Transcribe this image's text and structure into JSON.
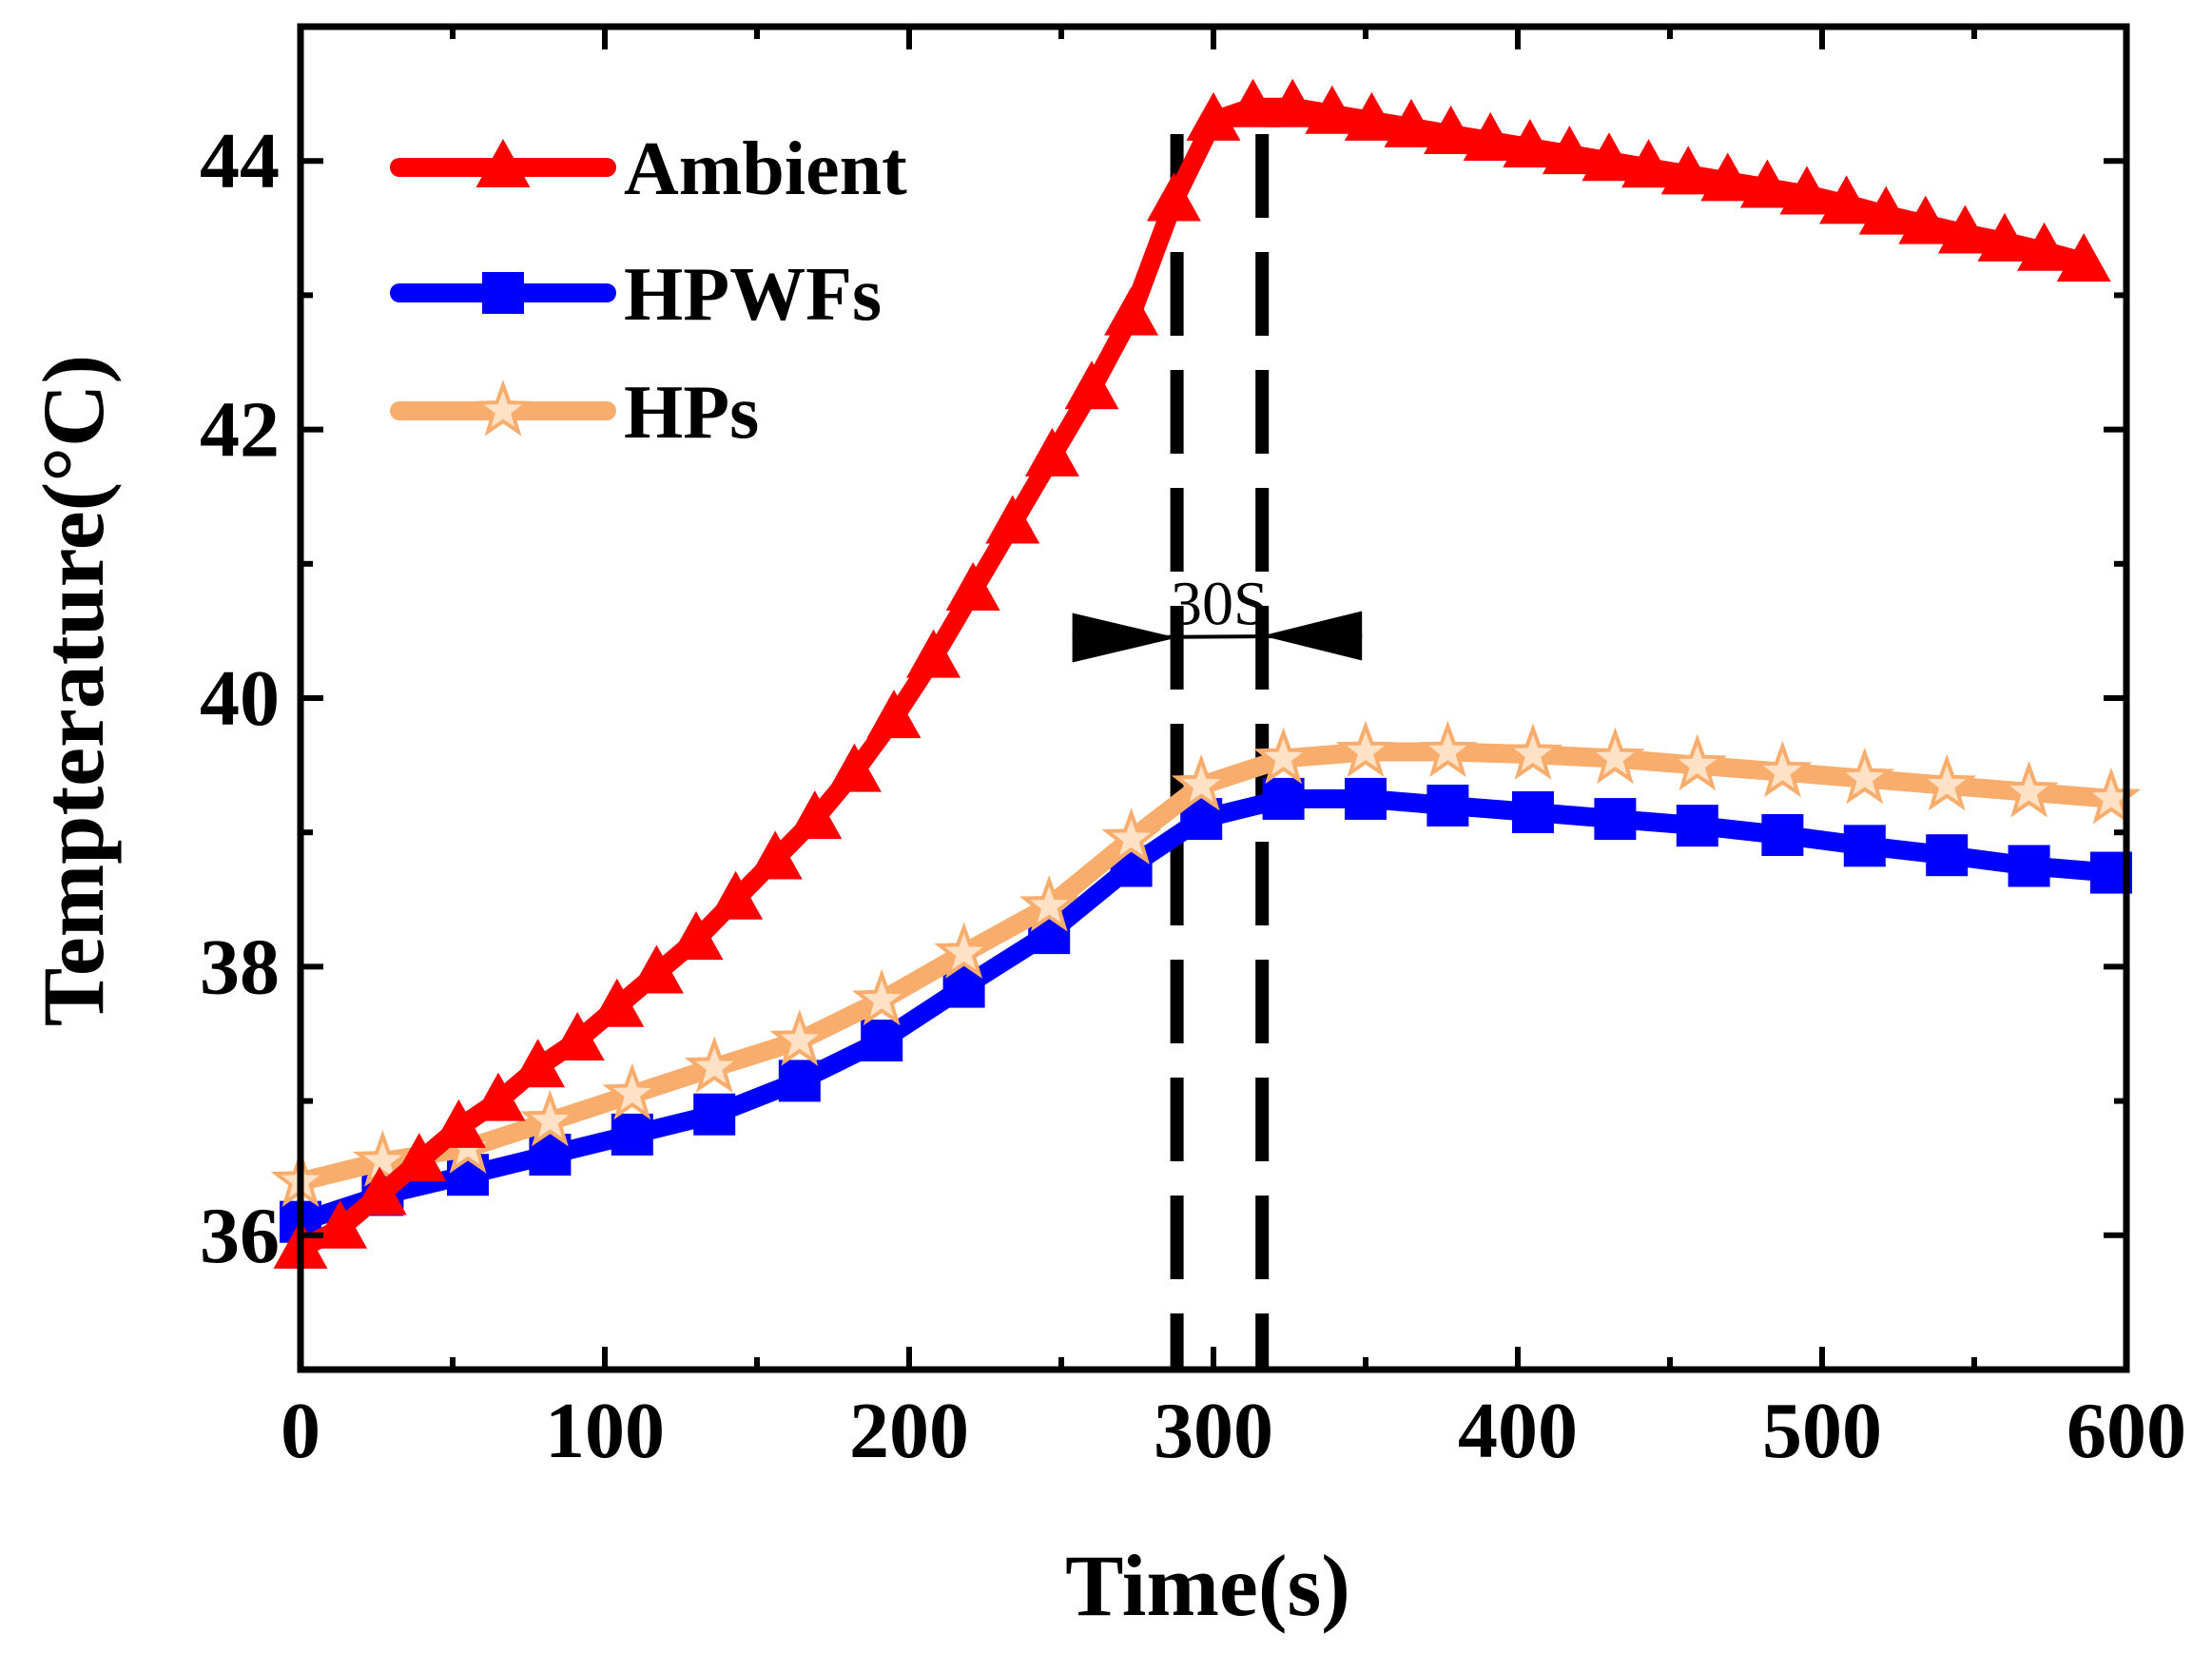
{
  "chart_data": {
    "type": "line",
    "title": "",
    "xlabel": "Time(s)",
    "ylabel": "Tempterature(°C)",
    "xlim": [
      0,
      600
    ],
    "ylim": [
      35,
      45
    ],
    "xticks": [
      0,
      100,
      200,
      300,
      400,
      500,
      600
    ],
    "xtick_labels": [
      "0",
      "100",
      "200",
      "300",
      "400",
      "500",
      "600"
    ],
    "yticks": [
      36,
      38,
      40,
      42,
      44
    ],
    "ytick_labels": [
      "36",
      "38",
      "40",
      "42",
      "44"
    ],
    "grid": false,
    "legend_position": "top-left",
    "series": [
      {
        "name": "Ambient",
        "color": "#ff0000",
        "marker": "triangle",
        "x": [
          0,
          13,
          26,
          39,
          52,
          65,
          78,
          91,
          104,
          117,
          130,
          143,
          156,
          169,
          182,
          195,
          208,
          221,
          234,
          247,
          260,
          273,
          287,
          300,
          313,
          326,
          339,
          352,
          365,
          378,
          391,
          404,
          417,
          430,
          443,
          456,
          469,
          482,
          495,
          508,
          521,
          534,
          547,
          560,
          573,
          586
        ],
        "y": [
          35.9,
          36.05,
          36.3,
          36.55,
          36.8,
          37.0,
          37.25,
          37.45,
          37.7,
          37.95,
          38.2,
          38.5,
          38.8,
          39.1,
          39.45,
          39.85,
          40.3,
          40.8,
          41.3,
          41.8,
          42.3,
          42.85,
          43.7,
          44.3,
          44.4,
          44.4,
          44.35,
          44.3,
          44.25,
          44.2,
          44.15,
          44.1,
          44.05,
          44.0,
          43.95,
          43.9,
          43.85,
          43.8,
          43.75,
          43.68,
          43.6,
          43.53,
          43.46,
          43.4,
          43.33,
          43.25
        ]
      },
      {
        "name": "HPWFs",
        "color": "#0000ff",
        "marker": "square",
        "x": [
          0,
          27,
          55,
          82,
          109,
          136,
          164,
          191,
          218,
          246,
          273,
          296,
          323,
          350,
          377,
          405,
          432,
          459,
          487,
          514,
          541,
          568,
          595
        ],
        "y": [
          36.1,
          36.3,
          36.45,
          36.6,
          36.75,
          36.9,
          37.15,
          37.45,
          37.85,
          38.25,
          38.75,
          39.1,
          39.25,
          39.25,
          39.2,
          39.15,
          39.1,
          39.05,
          38.98,
          38.9,
          38.83,
          38.75,
          38.7
        ]
      },
      {
        "name": "HPs",
        "color": "#f9ad6d",
        "marker": "star",
        "x": [
          0,
          27,
          55,
          82,
          109,
          136,
          164,
          191,
          218,
          246,
          273,
          296,
          323,
          350,
          377,
          405,
          432,
          459,
          487,
          514,
          541,
          568,
          595
        ],
        "y": [
          36.4,
          36.55,
          36.65,
          36.85,
          37.05,
          37.25,
          37.45,
          37.75,
          38.1,
          38.45,
          38.95,
          39.35,
          39.55,
          39.6,
          39.6,
          39.58,
          39.55,
          39.5,
          39.45,
          39.4,
          39.35,
          39.3,
          39.25
        ]
      }
    ],
    "annotations": [
      {
        "type": "dashed-vline",
        "x": 288,
        "y_top": 44.2,
        "y_bottom": 35.0
      },
      {
        "type": "dashed-vline",
        "x": 316,
        "y_top": 44.2,
        "y_bottom": 35.0
      },
      {
        "type": "interval-arrows",
        "text": "30S",
        "x_start": 288,
        "x_end": 316,
        "y": 40.45
      }
    ]
  }
}
